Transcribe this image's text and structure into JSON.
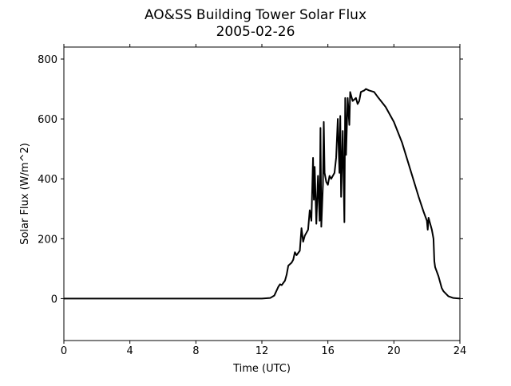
{
  "chart_data": {
    "type": "line",
    "title": "AO&SS Building Tower Solar Flux",
    "subtitle": "2005-02-26",
    "x_label": "Time (UTC)",
    "y_label": "Solar Flux (W/m^2)",
    "xlim": [
      0,
      24
    ],
    "xticks": [
      0,
      4,
      8,
      12,
      16,
      20,
      24
    ],
    "ylim": [
      -140,
      840
    ],
    "yticks": [
      0,
      200,
      400,
      600,
      800
    ],
    "color": "#000000",
    "x": [
      0,
      12,
      12.5,
      12.75,
      13.0,
      13.1,
      13.2,
      13.4,
      13.5,
      13.6,
      13.8,
      13.9,
      14.0,
      14.1,
      14.3,
      14.4,
      14.5,
      14.6,
      14.8,
      14.9,
      15.0,
      15.1,
      15.15,
      15.2,
      15.3,
      15.4,
      15.5,
      15.55,
      15.6,
      15.7,
      15.75,
      15.8,
      15.9,
      16.0,
      16.1,
      16.2,
      16.4,
      16.5,
      16.6,
      16.7,
      16.75,
      16.8,
      16.9,
      17.0,
      17.05,
      17.1,
      17.2,
      17.3,
      17.35,
      17.5,
      17.7,
      17.8,
      17.9,
      18.0,
      18.2,
      18.3,
      18.5,
      18.8,
      19.0,
      19.5,
      20.0,
      20.5,
      21.0,
      21.5,
      21.8,
      22.0,
      22.05,
      22.1,
      22.3,
      22.4,
      22.45,
      22.5,
      22.7,
      22.9,
      23.0,
      23.3,
      23.6,
      24
    ],
    "values": [
      0,
      0,
      2,
      10,
      40,
      48,
      45,
      60,
      80,
      110,
      120,
      130,
      155,
      145,
      160,
      235,
      190,
      210,
      230,
      295,
      260,
      470,
      330,
      440,
      250,
      410,
      260,
      570,
      240,
      380,
      590,
      420,
      390,
      380,
      410,
      400,
      420,
      470,
      600,
      420,
      610,
      340,
      560,
      255,
      670,
      480,
      670,
      580,
      690,
      660,
      670,
      650,
      660,
      690,
      695,
      700,
      695,
      690,
      675,
      640,
      590,
      520,
      430,
      340,
      290,
      260,
      230,
      270,
      230,
      200,
      125,
      105,
      75,
      35,
      25,
      8,
      2,
      0
    ]
  }
}
